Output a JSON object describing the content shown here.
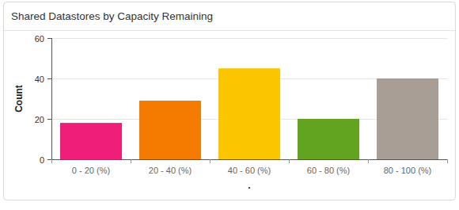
{
  "chart_data": {
    "type": "bar",
    "title": "Shared Datastores by Capacity Remaining",
    "categories": [
      "0 - 20 (%)",
      "20 - 40 (%)",
      "40 - 60 (%)",
      "60 - 80 (%)",
      "80 - 100 (%)"
    ],
    "values": [
      18,
      29,
      45,
      20,
      40
    ],
    "colors": [
      "#ef1e79",
      "#f47a00",
      "#fbc500",
      "#62a420",
      "#a89e96"
    ],
    "x_label": ".",
    "y_label": "Count",
    "ylim": [
      0,
      60
    ],
    "yticks": [
      0,
      20,
      40,
      60
    ],
    "grid": true
  }
}
